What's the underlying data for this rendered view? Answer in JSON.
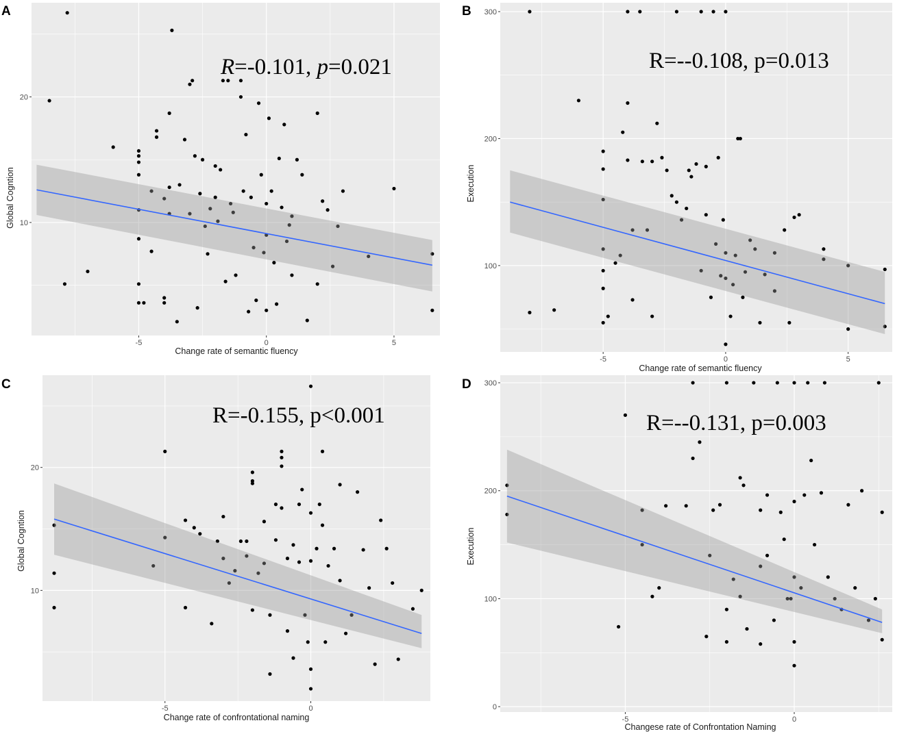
{
  "figure": {
    "colors": {
      "panel_bg": "#ebebeb",
      "grid": "#ffffff",
      "point": "#000000",
      "line": "#3366ff",
      "ribbon": "#bfbfbf"
    }
  },
  "chart_data": [
    {
      "type": "scatter",
      "panel_label": "A",
      "annotation": {
        "r_symbol": "R",
        "r_value": "=-0.101, ",
        "p_symbol": "p",
        "p_value": "=0.021",
        "italic": true
      },
      "xlabel": "Change rate of semantic fluency",
      "ylabel": "Global Cogntion",
      "xlim": [
        -9.2,
        6.8
      ],
      "ylim": [
        1.0,
        27.5
      ],
      "xticks": [
        -5,
        0,
        5
      ],
      "yticks": [
        10,
        20
      ],
      "grid": true,
      "fit": {
        "x": [
          -9.0,
          6.5
        ],
        "y": [
          12.6,
          6.6
        ],
        "lower": [
          10.6,
          4.5
        ],
        "upper": [
          14.6,
          8.6
        ]
      },
      "points": {
        "x": [
          -8.5,
          -7.8,
          -7.9,
          -7.0,
          -6.0,
          -5.0,
          -5.0,
          -5.0,
          -5.0,
          -5.0,
          -5.0,
          -5.0,
          -5.0,
          -4.8,
          -4.5,
          -4.5,
          -4.3,
          -4.3,
          -4.0,
          -4.0,
          -4.0,
          -3.8,
          -3.8,
          -3.8,
          -3.7,
          -3.5,
          -3.4,
          -3.2,
          -3.0,
          -3.0,
          -2.9,
          -2.8,
          -2.7,
          -2.6,
          -2.5,
          -2.4,
          -2.3,
          -2.2,
          -2.0,
          -2.0,
          -1.9,
          -1.8,
          -1.7,
          -1.6,
          -1.5,
          -1.4,
          -1.3,
          -1.2,
          -1.0,
          -1.0,
          -0.9,
          -0.8,
          -0.7,
          -0.6,
          -0.5,
          -0.4,
          -0.3,
          -0.2,
          -0.1,
          0.0,
          0.0,
          0.0,
          0.1,
          0.2,
          0.3,
          0.4,
          0.5,
          0.6,
          0.7,
          0.8,
          0.9,
          1.0,
          1.0,
          1.2,
          1.4,
          1.6,
          2.0,
          2.0,
          2.2,
          2.4,
          2.6,
          2.8,
          3.0,
          4.0,
          5.0,
          6.5,
          6.5
        ],
        "y": [
          19.7,
          26.7,
          5.1,
          6.1,
          16.0,
          15.7,
          15.3,
          14.8,
          13.8,
          11.0,
          8.7,
          5.1,
          3.6,
          3.6,
          12.5,
          7.7,
          16.8,
          17.3,
          4.0,
          3.6,
          11.9,
          10.7,
          18.7,
          12.8,
          25.3,
          2.1,
          13.0,
          16.6,
          21.0,
          10.7,
          21.3,
          15.3,
          3.2,
          12.3,
          15.0,
          9.7,
          7.5,
          11.1,
          12.0,
          14.5,
          10.1,
          14.2,
          21.3,
          5.3,
          21.3,
          11.5,
          10.8,
          5.8,
          21.3,
          20.0,
          12.5,
          17.0,
          2.9,
          12.0,
          8.0,
          3.8,
          19.5,
          13.8,
          7.6,
          11.5,
          9.0,
          3.0,
          18.3,
          12.5,
          6.8,
          3.5,
          15.1,
          11.2,
          17.8,
          8.5,
          9.8,
          10.5,
          5.8,
          15.0,
          13.8,
          2.2,
          18.7,
          5.1,
          11.7,
          11.0,
          6.5,
          9.7,
          12.5,
          7.3,
          12.7,
          7.5,
          3.0
        ]
      }
    },
    {
      "type": "scatter",
      "panel_label": "B",
      "annotation": {
        "r_symbol": "R",
        "r_value": "=--0.108, ",
        "p_symbol": "p",
        "p_value": "=0.013",
        "italic": false
      },
      "xlabel": "Change rate of semantic fluency",
      "ylabel": "Execution",
      "xlim": [
        -9.2,
        6.8
      ],
      "ylim": [
        32,
        307
      ],
      "xticks": [
        -5,
        0,
        5
      ],
      "yticks": [
        100,
        200,
        300
      ],
      "grid": true,
      "fit": {
        "x": [
          -8.8,
          6.5
        ],
        "y": [
          150,
          70
        ],
        "lower": [
          126,
          46
        ],
        "upper": [
          175,
          95
        ]
      },
      "points": {
        "x": [
          -8.0,
          -8.0,
          -7.0,
          -6.0,
          -5.0,
          -5.0,
          -5.0,
          -5.0,
          -5.0,
          -5.0,
          -5.0,
          -4.8,
          -4.5,
          -4.3,
          -4.2,
          -4.0,
          -4.0,
          -4.0,
          -3.8,
          -3.8,
          -3.5,
          -3.4,
          -3.2,
          -3.0,
          -3.0,
          -2.8,
          -2.6,
          -2.4,
          -2.2,
          -2.0,
          -2.0,
          -1.8,
          -1.6,
          -1.5,
          -1.4,
          -1.2,
          -1.0,
          -1.0,
          -0.8,
          -0.8,
          -0.6,
          -0.5,
          -0.4,
          -0.3,
          -0.2,
          -0.1,
          0.0,
          0.0,
          0.0,
          0.0,
          0.2,
          0.3,
          0.4,
          0.5,
          0.6,
          0.7,
          0.8,
          1.0,
          1.2,
          1.4,
          1.6,
          2.0,
          2.0,
          2.4,
          2.6,
          2.8,
          3.0,
          4.0,
          4.0,
          5.0,
          5.0,
          6.5,
          6.5
        ],
        "y": [
          300,
          63,
          65,
          230,
          190,
          176,
          152,
          113,
          96,
          82,
          55,
          60,
          102,
          108,
          205,
          300,
          228,
          183,
          128,
          73,
          300,
          182,
          128,
          182,
          60,
          212,
          185,
          175,
          155,
          150,
          300,
          136,
          145,
          175,
          170,
          180,
          300,
          96,
          178,
          140,
          75,
          300,
          117,
          185,
          92,
          136,
          300,
          110,
          90,
          38,
          60,
          85,
          108,
          200,
          200,
          75,
          95,
          120,
          113,
          55,
          93,
          110,
          80,
          128,
          55,
          138,
          140,
          113,
          105,
          100,
          50,
          97,
          52
        ]
      }
    },
    {
      "type": "scatter",
      "panel_label": "C",
      "annotation": {
        "r_symbol": "R",
        "r_value": "=-0.155, ",
        "p_symbol": "p",
        "p_value": "<0.001",
        "italic": false
      },
      "xlabel": "Change rate of confrontational naming",
      "ylabel": "Global Cogntion",
      "xlim": [
        -9.2,
        4.1
      ],
      "ylim": [
        1.0,
        27.5
      ],
      "xticks": [
        -5,
        0
      ],
      "yticks": [
        10,
        20
      ],
      "grid": true,
      "fit": {
        "x": [
          -8.8,
          3.8
        ],
        "y": [
          15.8,
          6.5
        ],
        "lower": [
          12.9,
          5.3
        ],
        "upper": [
          18.7,
          8.0
        ]
      },
      "points": {
        "x": [
          -8.8,
          -8.8,
          -8.8,
          -5.4,
          -5.0,
          -5.0,
          -4.3,
          -4.3,
          -4.0,
          -3.8,
          -3.4,
          -3.2,
          -3.0,
          -3.0,
          -2.8,
          -2.6,
          -2.4,
          -2.2,
          -2.2,
          -2.0,
          -2.0,
          -2.0,
          -2.0,
          -1.8,
          -1.6,
          -1.6,
          -1.4,
          -1.4,
          -1.2,
          -1.2,
          -1.0,
          -1.0,
          -1.0,
          -1.0,
          -0.8,
          -0.8,
          -0.6,
          -0.6,
          -0.4,
          -0.4,
          -0.3,
          -0.2,
          -0.1,
          0.0,
          0.0,
          0.0,
          0.0,
          0.0,
          0.2,
          0.3,
          0.4,
          0.4,
          0.5,
          0.6,
          0.8,
          1.0,
          1.0,
          1.2,
          1.4,
          1.6,
          1.8,
          2.0,
          2.2,
          2.4,
          2.6,
          2.8,
          3.0,
          3.5,
          3.8
        ],
        "y": [
          15.3,
          11.4,
          8.6,
          12.0,
          21.3,
          14.3,
          15.7,
          8.6,
          15.1,
          14.6,
          7.3,
          14.0,
          16.0,
          12.6,
          10.6,
          11.6,
          14.0,
          14.0,
          12.8,
          19.6,
          18.9,
          18.7,
          8.4,
          11.4,
          15.6,
          12.2,
          8.0,
          3.2,
          17.0,
          14.1,
          21.3,
          20.8,
          20.1,
          16.7,
          12.6,
          6.7,
          13.7,
          4.5,
          17.0,
          12.3,
          18.2,
          8.0,
          5.8,
          26.6,
          16.3,
          12.4,
          3.6,
          2.0,
          13.4,
          17.0,
          21.3,
          15.3,
          5.8,
          12.0,
          13.4,
          18.6,
          10.8,
          6.5,
          8.0,
          18.0,
          13.3,
          10.2,
          4.0,
          15.7,
          13.4,
          10.6,
          4.4,
          8.5,
          10.0
        ]
      }
    },
    {
      "type": "scatter",
      "panel_label": "D",
      "annotation": {
        "r_symbol": "R",
        "r_value": "=--0.131, ",
        "p_symbol": "p",
        "p_value": "=0.003",
        "italic": false
      },
      "xlabel": "Changese rate of Confrontation Naming",
      "ylabel": "Execution",
      "xlim": [
        -8.7,
        2.9
      ],
      "ylim": [
        -5,
        307
      ],
      "xticks": [
        -5,
        0
      ],
      "yticks": [
        0,
        100,
        200,
        300
      ],
      "grid": true,
      "fit": {
        "x": [
          -8.5,
          2.6
        ],
        "y": [
          195,
          78
        ],
        "lower": [
          152,
          68
        ],
        "upper": [
          238,
          90
        ]
      },
      "points": {
        "x": [
          -8.5,
          -8.5,
          -5.2,
          -5.0,
          -4.5,
          -4.5,
          -4.2,
          -4.0,
          -3.8,
          -3.2,
          -3.0,
          -3.0,
          -2.8,
          -2.6,
          -2.5,
          -2.4,
          -2.2,
          -2.0,
          -2.0,
          -2.0,
          -1.8,
          -1.6,
          -1.6,
          -1.5,
          -1.4,
          -1.2,
          -1.0,
          -1.0,
          -1.0,
          -0.8,
          -0.8,
          -0.6,
          -0.5,
          -0.4,
          -0.3,
          -0.2,
          -0.1,
          0.0,
          0.0,
          0.0,
          0.0,
          0.0,
          0.2,
          0.3,
          0.4,
          0.5,
          0.6,
          0.8,
          0.9,
          1.0,
          1.2,
          1.4,
          1.6,
          1.8,
          2.0,
          2.2,
          2.4,
          2.5,
          2.6,
          2.6
        ],
        "y": [
          205,
          178,
          74,
          270,
          182,
          150,
          102,
          110,
          186,
          186,
          230,
          300,
          245,
          65,
          140,
          182,
          187,
          300,
          90,
          60,
          118,
          212,
          102,
          205,
          72,
          300,
          182,
          130,
          58,
          196,
          140,
          80,
          300,
          180,
          155,
          100,
          100,
          300,
          190,
          120,
          60,
          38,
          110,
          196,
          300,
          228,
          150,
          198,
          300,
          120,
          100,
          90,
          187,
          110,
          200,
          80,
          100,
          300,
          180,
          62
        ]
      }
    }
  ]
}
